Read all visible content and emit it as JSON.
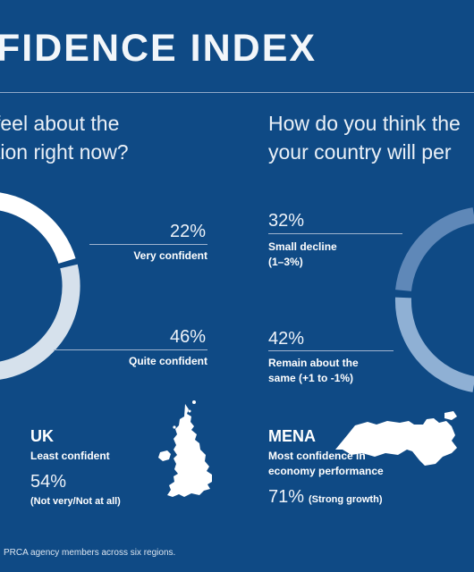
{
  "header": {
    "title": "FIDENCE INDEX"
  },
  "left": {
    "question": "feel about the\ntion right now?",
    "items": [
      {
        "percent": "22%",
        "label": "Very confident",
        "value": 22
      },
      {
        "percent": "46%",
        "label": "Quite confident",
        "value": 46
      }
    ]
  },
  "right": {
    "question": "How do you think the\nyour country will per",
    "items": [
      {
        "percent": "32%",
        "label": "Small decline\n(1–3%)",
        "value": 32
      },
      {
        "percent": "42%",
        "label": "Remain about the\nsame (+1 to -1%)",
        "value": 42
      }
    ]
  },
  "regions": {
    "uk": {
      "name": "UK",
      "subtitle": "Least confident",
      "percent": "54%",
      "note": "(Not very/Not at all)",
      "map_icon": "uk-map-icon"
    },
    "mena": {
      "name": "MENA",
      "subtitle": "Most confidence in\neconomy performance",
      "percent": "71%",
      "note": "(Strong growth)",
      "map_icon": "mena-map-icon"
    }
  },
  "footer": {
    "text": "PRCA agency members across six regions."
  },
  "colors": {
    "background": "#0f4a85",
    "ring_white": "#ffffff",
    "ring_light": "#d6e1ec",
    "ring_mid": "#5f88b8",
    "ring_muted": "#8fb0d4"
  }
}
